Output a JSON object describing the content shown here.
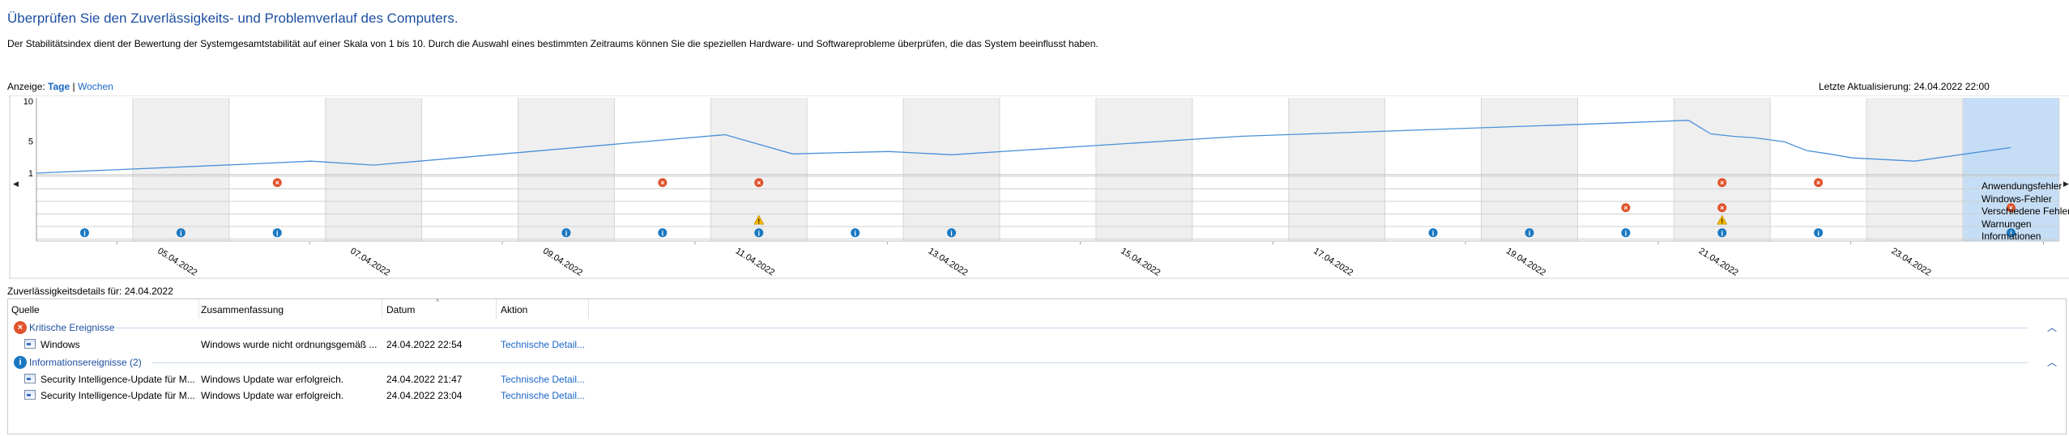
{
  "header": {
    "title": "Überprüfen Sie den Zuverlässigkeits- und Problemverlauf des Computers.",
    "description": "Der Stabilitätsindex dient der Bewertung der Systemgesamtstabilität auf einer Skala von 1 bis 10. Durch die Auswahl eines bestimmten Zeitraums können Sie die speziellen Hardware- und Softwareprobleme überprüfen, die das System beeinflusst haben.",
    "view_label": "Anzeige:",
    "view_days": "Tage",
    "view_separator": "|",
    "view_weeks": "Wochen",
    "last_update": "Letzte Aktualisierung: 24.04.2022 22:00"
  },
  "chart_data": {
    "type": "line",
    "yticks": [
      "10",
      "5",
      "1"
    ],
    "ylim": [
      1,
      10
    ],
    "dates": [
      "04.04.2022",
      "05.04.2022",
      "06.04.2022",
      "07.04.2022",
      "08.04.2022",
      "09.04.2022",
      "10.04.2022",
      "11.04.2022",
      "12.04.2022",
      "13.04.2022",
      "14.04.2022",
      "15.04.2022",
      "16.04.2022",
      "17.04.2022",
      "18.04.2022",
      "19.04.2022",
      "20.04.2022",
      "21.04.2022",
      "22.04.2022",
      "23.04.2022",
      "24.04.2022"
    ],
    "xtick_labels": [
      "05.04.2022",
      "07.04.2022",
      "09.04.2022",
      "11.04.2022",
      "13.04.2022",
      "15.04.2022",
      "17.04.2022",
      "19.04.2022",
      "21.04.2022",
      "23.04.2022"
    ],
    "xtick_dates": [
      "05.04.2022",
      "07.04.2022",
      "09.04.2022",
      "11.04.2022",
      "13.04.2022",
      "15.04.2022",
      "17.04.2022",
      "19.04.2022",
      "21.04.2022",
      "23.04.2022"
    ],
    "selected_date": "24.04.2022",
    "stability_index": [
      {
        "date": "04.04.2022",
        "value": 1.0
      },
      {
        "date": "06.04.2022",
        "value": 2.1
      },
      {
        "date": "06.04.2022",
        "value": 2.5
      },
      {
        "date": "07.04.2022",
        "value": 2.0
      },
      {
        "date": "11.04.2022",
        "value": 5.8
      },
      {
        "date": "11.04.2022",
        "value": 3.4
      },
      {
        "date": "12.04.2022",
        "value": 3.5
      },
      {
        "date": "12.04.2022",
        "value": 3.7
      },
      {
        "date": "13.04.2022",
        "value": 3.3
      },
      {
        "date": "16.04.2022",
        "value": 5.6
      },
      {
        "date": "20.04.2022",
        "value": 7.3
      },
      {
        "date": "21.04.2022",
        "value": 7.6
      },
      {
        "date": "21.04.2022",
        "value": 5.9
      },
      {
        "date": "21.04.2022",
        "value": 5.6
      },
      {
        "date": "21.04.2022",
        "value": 5.4
      },
      {
        "date": "22.04.2022",
        "value": 4.9
      },
      {
        "date": "22.04.2022",
        "value": 3.8
      },
      {
        "date": "22.04.2022",
        "value": 3.4
      },
      {
        "date": "22.04.2022",
        "value": 2.9
      },
      {
        "date": "23.04.2022",
        "value": 2.5
      },
      {
        "date": "24.04.2022",
        "value": 4.2
      }
    ],
    "event_rows": [
      "Anwendungsfehler",
      "Windows-Fehler",
      "Verschiedene Fehler",
      "Warnungen",
      "Informationen"
    ],
    "events": [
      {
        "row": "Anwendungsfehler",
        "date": "06.04.2022",
        "type": "error"
      },
      {
        "row": "Anwendungsfehler",
        "date": "10.04.2022",
        "type": "error"
      },
      {
        "row": "Anwendungsfehler",
        "date": "11.04.2022",
        "type": "error"
      },
      {
        "row": "Anwendungsfehler",
        "date": "21.04.2022",
        "type": "error"
      },
      {
        "row": "Anwendungsfehler",
        "date": "22.04.2022",
        "type": "error"
      },
      {
        "row": "Verschiedene Fehler",
        "date": "20.04.2022",
        "type": "error"
      },
      {
        "row": "Verschiedene Fehler",
        "date": "21.04.2022",
        "type": "error"
      },
      {
        "row": "Verschiedene Fehler",
        "date": "24.04.2022",
        "type": "error"
      },
      {
        "row": "Warnungen",
        "date": "11.04.2022",
        "type": "warning"
      },
      {
        "row": "Warnungen",
        "date": "21.04.2022",
        "type": "warning"
      },
      {
        "row": "Informationen",
        "date": "04.04.2022",
        "type": "info"
      },
      {
        "row": "Informationen",
        "date": "05.04.2022",
        "type": "info"
      },
      {
        "row": "Informationen",
        "date": "06.04.2022",
        "type": "info"
      },
      {
        "row": "Informationen",
        "date": "09.04.2022",
        "type": "info"
      },
      {
        "row": "Informationen",
        "date": "10.04.2022",
        "type": "info"
      },
      {
        "row": "Informationen",
        "date": "11.04.2022",
        "type": "info"
      },
      {
        "row": "Informationen",
        "date": "12.04.2022",
        "type": "info"
      },
      {
        "row": "Informationen",
        "date": "13.04.2022",
        "type": "info"
      },
      {
        "row": "Informationen",
        "date": "18.04.2022",
        "type": "info"
      },
      {
        "row": "Informationen",
        "date": "19.04.2022",
        "type": "info"
      },
      {
        "row": "Informationen",
        "date": "20.04.2022",
        "type": "info"
      },
      {
        "row": "Informationen",
        "date": "21.04.2022",
        "type": "info"
      },
      {
        "row": "Informationen",
        "date": "22.04.2022",
        "type": "info"
      },
      {
        "row": "Informationen",
        "date": "24.04.2022",
        "type": "info"
      }
    ],
    "colors": {
      "line": "#4a90d9",
      "band": "#efefef",
      "selected": "#c5def5",
      "error": "#e0532b",
      "warning": "#f2b600",
      "info": "#1a78c2"
    }
  },
  "details": {
    "label": "Zuverlässigkeitsdetails für: 24.04.2022",
    "columns": [
      "Quelle",
      "Zusammenfassung",
      "Datum",
      "Aktion"
    ],
    "groups": [
      {
        "title": "Kritische Ereignisse",
        "icon": "error-icon",
        "color": "#e0532b",
        "rows": [
          {
            "source": "Windows",
            "summary": "Windows wurde nicht ordnungsgemäß ...",
            "date": "24.04.2022 22:54",
            "action": "Technische Detail..."
          }
        ]
      },
      {
        "title": "Informationsereignisse (2)",
        "icon": "info-icon",
        "color": "#1a78c2",
        "rows": [
          {
            "source": "Security Intelligence-Update für M...",
            "summary": "Windows Update war erfolgreich.",
            "date": "24.04.2022 21:47",
            "action": "Technische Detail..."
          },
          {
            "source": "Security Intelligence-Update für M...",
            "summary": "Windows Update war erfolgreich.",
            "date": "24.04.2022 23:04",
            "action": "Technische Detail..."
          }
        ]
      }
    ]
  }
}
